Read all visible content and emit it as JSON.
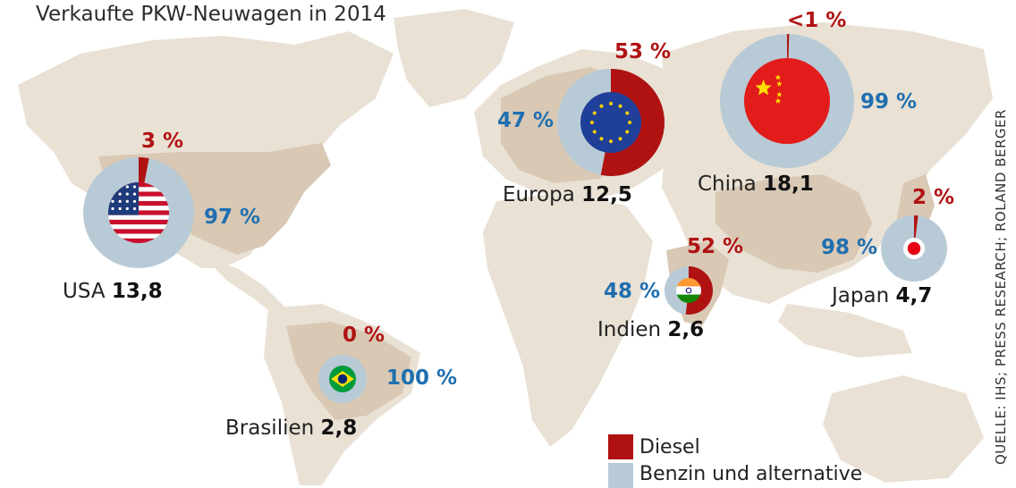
{
  "title": "Verkaufte PKW-Neuwagen in 2014",
  "chart_data": {
    "type": "pie",
    "unit": "Mio.",
    "series_names": [
      "Diesel",
      "Benzin und alternative"
    ],
    "regions": [
      {
        "id": "usa",
        "name": "USA",
        "total": "13,8",
        "total_value": 13.8,
        "diesel_pct": 3,
        "benzin_pct": 97,
        "diesel_label": "3 %",
        "benzin_label": "97 %",
        "flag": "usa-flag"
      },
      {
        "id": "europa",
        "name": "Europa",
        "total": "12,5",
        "total_value": 12.5,
        "diesel_pct": 53,
        "benzin_pct": 47,
        "diesel_label": "53 %",
        "benzin_label": "47 %",
        "flag": "eu-flag"
      },
      {
        "id": "china",
        "name": "China",
        "total": "18,1",
        "total_value": 18.1,
        "diesel_pct": 0.5,
        "benzin_pct": 99,
        "diesel_label": "<1 %",
        "benzin_label": "99 %",
        "flag": "china-flag"
      },
      {
        "id": "japan",
        "name": "Japan",
        "total": "4,7",
        "total_value": 4.7,
        "diesel_pct": 2,
        "benzin_pct": 98,
        "diesel_label": "2 %",
        "benzin_label": "98 %",
        "flag": "japan-flag"
      },
      {
        "id": "indien",
        "name": "Indien",
        "total": "2,6",
        "total_value": 2.6,
        "diesel_pct": 52,
        "benzin_pct": 48,
        "diesel_label": "52 %",
        "benzin_label": "48 %",
        "flag": "india-flag"
      },
      {
        "id": "brasilien",
        "name": "Brasilien",
        "total": "2,8",
        "total_value": 2.8,
        "diesel_pct": 0,
        "benzin_pct": 100,
        "diesel_label": "0 %",
        "benzin_label": "100 %",
        "flag": "brazil-flag"
      }
    ]
  },
  "legend": {
    "diesel_label": "Diesel",
    "benzin_label": "Benzin und alternative"
  },
  "colors": {
    "diesel": "#b01212",
    "benzin": "#b8cad6",
    "land": "#e9e1d4",
    "land_highlight": "#d8c8b4",
    "diesel_text": "#b01212",
    "benzin_text": "#1f6fb0"
  },
  "source": "QUELLE: IHS; PRESS RESEARCH; ROLAND BERGER"
}
